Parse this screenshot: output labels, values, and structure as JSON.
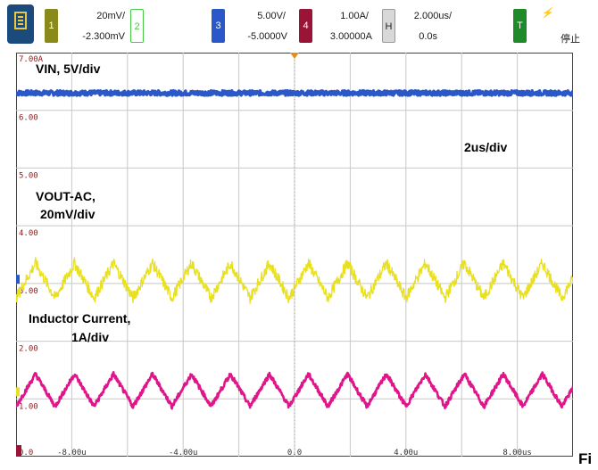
{
  "toolbar": {
    "ch1": {
      "num": "1",
      "scale": "20mV/",
      "offset": "-2.300mV",
      "color": "#8a8a1a"
    },
    "ch2": {
      "num": "2",
      "color": "#44cc44"
    },
    "ch3": {
      "num": "3",
      "scale": "5.00V/",
      "offset": "-5.0000V",
      "color": "#2a58c8"
    },
    "ch4": {
      "num": "4",
      "scale": "1.00A/",
      "offset": "3.00000A",
      "color": "#9a1438"
    },
    "horizontal": {
      "label": "H",
      "scale": "2.000us/",
      "offset": "0.0s"
    },
    "trigger": {
      "label": "T",
      "text": "停止",
      "color": "#1f8a2a"
    }
  },
  "chart_data": {
    "type": "line",
    "xlim": [
      -10,
      10
    ],
    "ylim": [
      0,
      7
    ],
    "y_tick_labels": [
      "7.00A",
      "6.00",
      "5.00",
      "4.00",
      "3.00",
      "2.00",
      "1.00",
      "0.0"
    ],
    "x_tick_labels": [
      "-8.00u",
      "-4.00u",
      "0.0",
      "4.00u",
      "8.00us"
    ],
    "annotations": [
      "VIN, 5V/div",
      "2us/div",
      "VOUT-AC,",
      "20mV/div",
      "Inductor Current,",
      "1A/div"
    ],
    "series": [
      {
        "name": "VIN, 5V/div",
        "color": "#2a58c8",
        "kind": "flat",
        "center": 6.3,
        "ripple": 0.04
      },
      {
        "name": "VOUT-AC, 20mV/div",
        "color": "#e8e020",
        "kind": "triangle",
        "center": 3.05,
        "amp": 0.3,
        "period": 1.4,
        "noise": 0.1
      },
      {
        "name": "Inductor Current, 1A/div",
        "color": "#e0158a",
        "kind": "triangle",
        "center": 1.15,
        "amp": 0.28,
        "period": 1.4,
        "noise": 0.04
      }
    ],
    "grid": true
  },
  "figure_label": "Fi"
}
